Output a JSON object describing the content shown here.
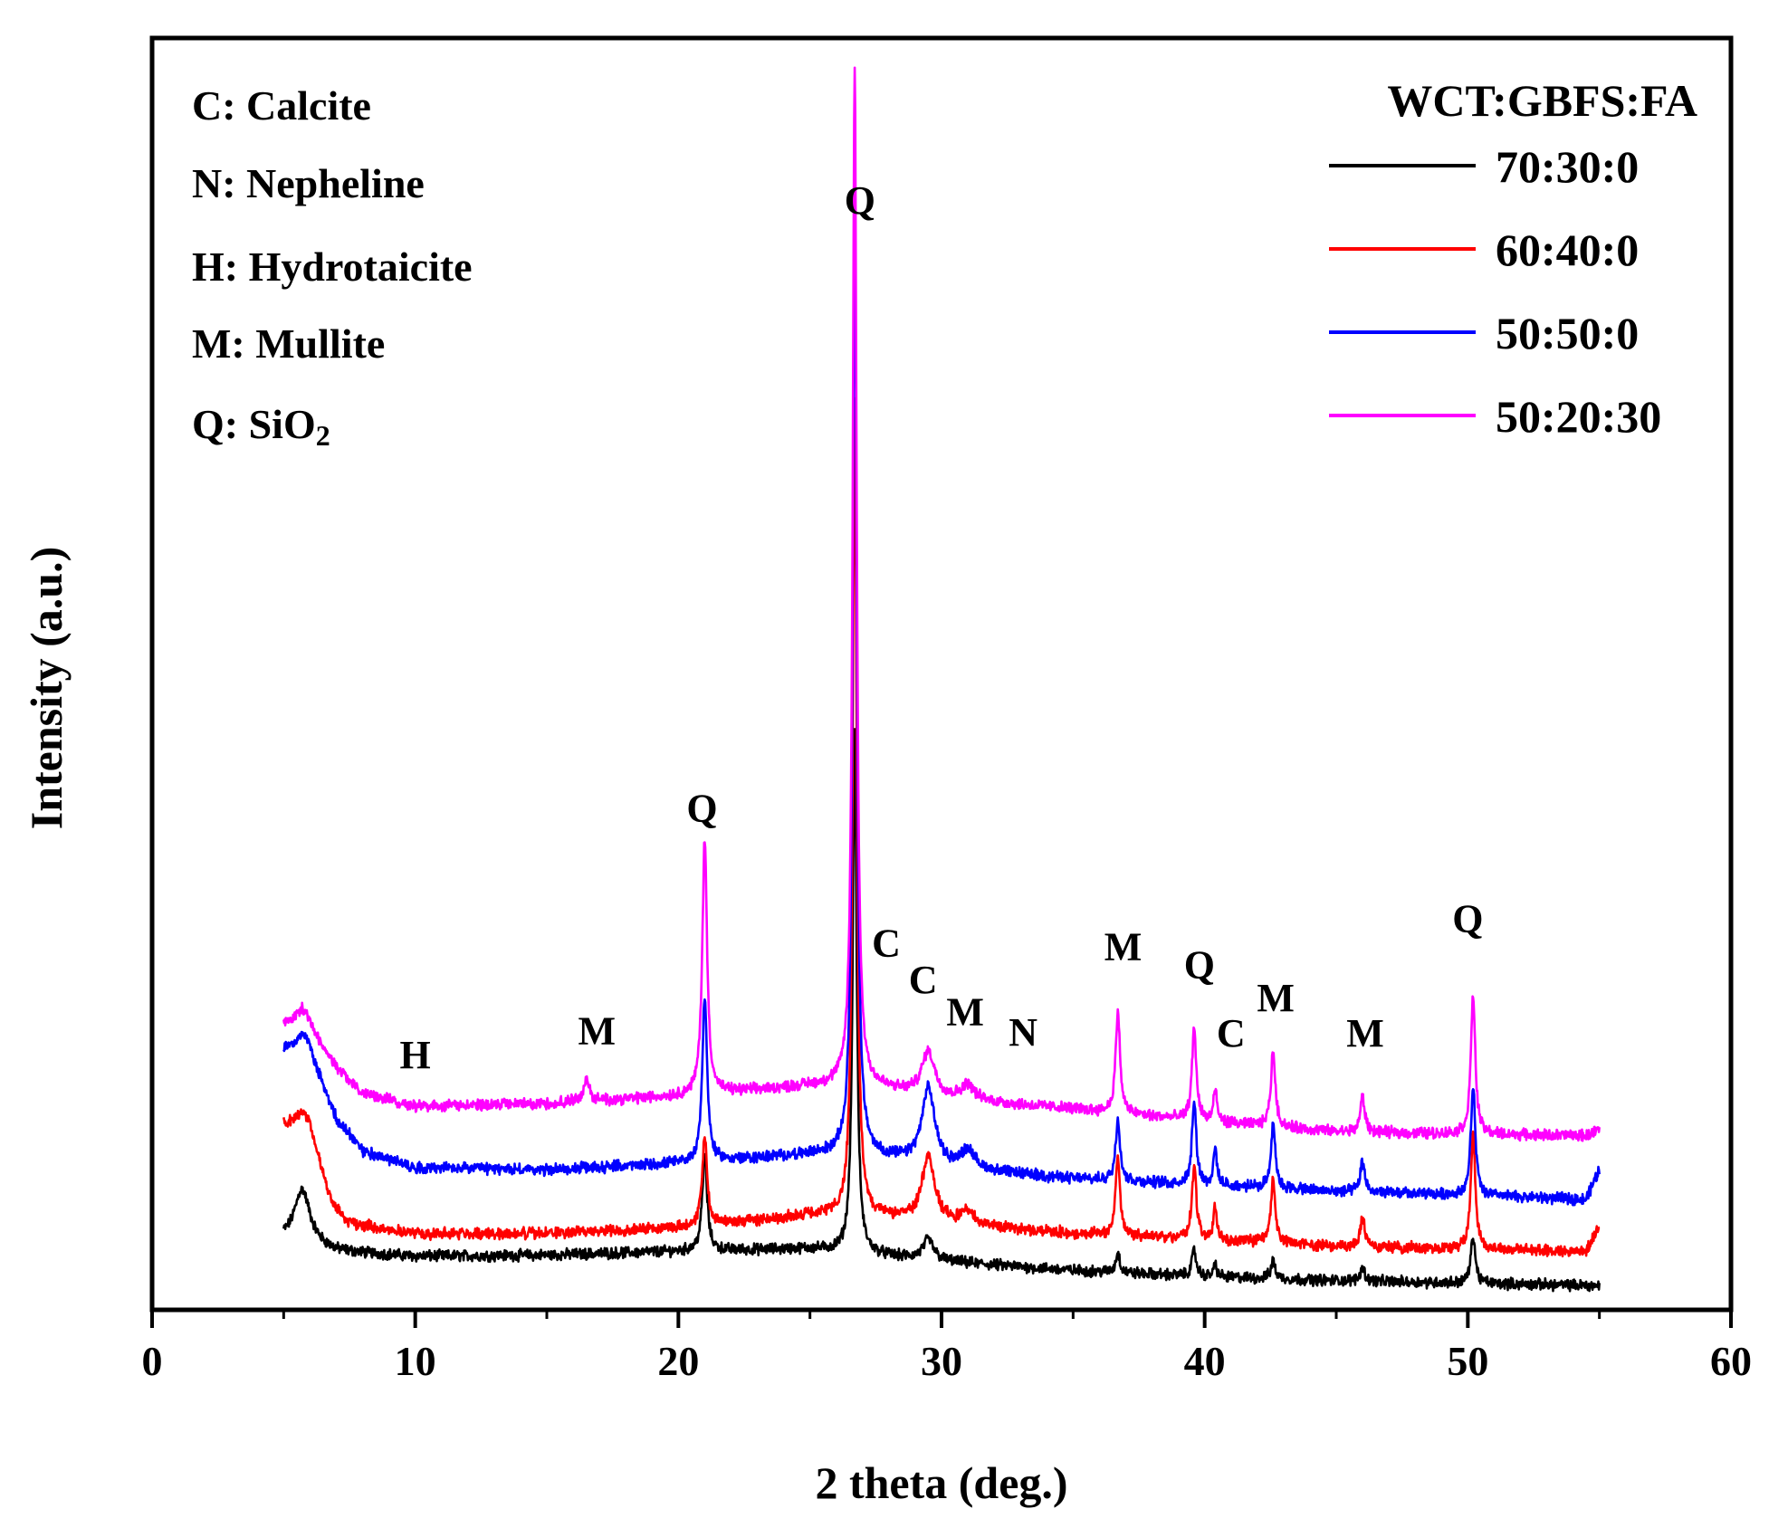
{
  "chart_data": {
    "type": "line",
    "title": "",
    "xlabel": "2 theta (deg.)",
    "ylabel": "Intensity (a.u.)",
    "xlim": [
      0,
      60
    ],
    "ylim": [
      0,
      100
    ],
    "xticks": [
      0,
      10,
      20,
      30,
      40,
      50,
      60
    ],
    "xtick_labels": [
      "0",
      "10",
      "20",
      "30",
      "40",
      "50",
      "60"
    ],
    "grid": false,
    "legend_position": "top-right",
    "legend_title": "WCT:GBFS:FA",
    "phase_key": [
      {
        "text": "C: Calcite"
      },
      {
        "text": "N: Nepheline"
      },
      {
        "text": "H: Hydrotaicite"
      },
      {
        "text": "M: Mullite"
      },
      {
        "text": "Q: SiO",
        "subscript": "2"
      }
    ],
    "series": [
      {
        "name": "70:30:0",
        "color": "#000000",
        "baseline": [
          [
            5,
            5.5
          ],
          [
            6,
            5.2
          ],
          [
            7,
            4.6
          ],
          [
            10,
            4.2
          ],
          [
            15,
            4.3
          ],
          [
            20,
            4.6
          ],
          [
            25,
            4.8
          ],
          [
            27,
            4.4
          ],
          [
            30,
            3.8
          ],
          [
            35,
            3.1
          ],
          [
            40,
            2.6
          ],
          [
            45,
            2.3
          ],
          [
            50,
            2.1
          ],
          [
            55,
            1.9
          ]
        ],
        "peaks": [
          [
            5.7,
            4.2,
            0.35
          ],
          [
            21.0,
            7.5,
            0.11
          ],
          [
            26.7,
            41.0,
            0.09
          ],
          [
            29.5,
            1.6,
            0.25
          ],
          [
            36.7,
            1.6,
            0.09
          ],
          [
            39.6,
            2.0,
            0.1
          ],
          [
            40.4,
            1.0,
            0.08
          ],
          [
            42.6,
            1.4,
            0.1
          ],
          [
            46.0,
            1.1,
            0.1
          ],
          [
            50.2,
            3.7,
            0.1
          ]
        ]
      },
      {
        "name": "60:40:0",
        "color": "#ff0000",
        "baseline": [
          [
            5,
            14.5
          ],
          [
            6,
            14.0
          ],
          [
            6.8,
            8.5
          ],
          [
            7.5,
            6.8
          ],
          [
            10,
            6.0
          ],
          [
            15,
            6.0
          ],
          [
            20,
            6.5
          ],
          [
            25,
            7.4
          ],
          [
            27,
            7.4
          ],
          [
            30,
            6.8
          ],
          [
            35,
            6.0
          ],
          [
            40,
            5.5
          ],
          [
            45,
            5.0
          ],
          [
            50,
            4.8
          ],
          [
            54.5,
            4.6
          ],
          [
            55,
            6.5
          ]
        ],
        "peaks": [
          [
            5.7,
            1.5,
            0.3
          ],
          [
            21.0,
            7.0,
            0.11
          ],
          [
            26.7,
            64.0,
            0.09
          ],
          [
            29.5,
            5.0,
            0.3
          ],
          [
            31.0,
            1.0,
            0.3
          ],
          [
            36.7,
            6.2,
            0.1
          ],
          [
            39.6,
            5.8,
            0.1
          ],
          [
            40.4,
            2.5,
            0.08
          ],
          [
            42.6,
            5.0,
            0.1
          ],
          [
            46.0,
            2.3,
            0.1
          ],
          [
            50.2,
            9.3,
            0.1
          ]
        ]
      },
      {
        "name": "50:50:0",
        "color": "#0000ff",
        "baseline": [
          [
            5,
            20.5
          ],
          [
            6,
            20.0
          ],
          [
            7,
            15.0
          ],
          [
            8,
            12.5
          ],
          [
            10,
            11.2
          ],
          [
            15,
            11.0
          ],
          [
            20,
            11.5
          ],
          [
            25,
            12.2
          ],
          [
            27,
            12.2
          ],
          [
            30,
            11.2
          ],
          [
            35,
            10.3
          ],
          [
            40,
            9.8
          ],
          [
            45,
            9.3
          ],
          [
            50,
            9.0
          ],
          [
            54.5,
            8.7
          ],
          [
            55,
            11.0
          ]
        ],
        "peaks": [
          [
            5.7,
            1.5,
            0.3
          ],
          [
            21.0,
            13.0,
            0.11
          ],
          [
            26.7,
            76.0,
            0.09
          ],
          [
            29.5,
            6.0,
            0.3
          ],
          [
            31.0,
            1.5,
            0.3
          ],
          [
            36.7,
            5.0,
            0.1
          ],
          [
            39.6,
            6.5,
            0.1
          ],
          [
            40.4,
            2.8,
            0.08
          ],
          [
            42.6,
            5.2,
            0.1
          ],
          [
            46.0,
            2.4,
            0.1
          ],
          [
            50.2,
            8.7,
            0.1
          ]
        ]
      },
      {
        "name": "50:20:30",
        "color": "#ff00ff",
        "baseline": [
          [
            5,
            22.5
          ],
          [
            6,
            22.0
          ],
          [
            7,
            19.0
          ],
          [
            8,
            17.0
          ],
          [
            10,
            16.0
          ],
          [
            15,
            16.2
          ],
          [
            20,
            16.8
          ],
          [
            25,
            17.6
          ],
          [
            27,
            17.6
          ],
          [
            30,
            16.6
          ],
          [
            35,
            15.8
          ],
          [
            40,
            14.8
          ],
          [
            45,
            14.0
          ],
          [
            50,
            13.8
          ],
          [
            54.5,
            13.7
          ],
          [
            55,
            14.2
          ]
        ],
        "peaks": [
          [
            5.7,
            1.5,
            0.3
          ],
          [
            16.5,
            1.6,
            0.15
          ],
          [
            21.0,
            20.0,
            0.11
          ],
          [
            26.7,
            80.0,
            0.09
          ],
          [
            29.5,
            3.5,
            0.3
          ],
          [
            31.0,
            1.2,
            0.3
          ],
          [
            36.7,
            8.0,
            0.1
          ],
          [
            39.6,
            7.2,
            0.1
          ],
          [
            40.4,
            2.5,
            0.08
          ],
          [
            42.6,
            6.0,
            0.1
          ],
          [
            46.0,
            2.8,
            0.1
          ],
          [
            50.2,
            11.0,
            0.1
          ]
        ]
      }
    ],
    "annotations": [
      {
        "text": "Q",
        "x": 26.9,
        "y": 86.2
      },
      {
        "text": "Q",
        "x": 20.9,
        "y": 38.4
      },
      {
        "text": "C",
        "x": 27.9,
        "y": 27.8
      },
      {
        "text": "C",
        "x": 29.3,
        "y": 24.9
      },
      {
        "text": "M",
        "x": 30.9,
        "y": 22.4
      },
      {
        "text": "N",
        "x": 33.1,
        "y": 20.8
      },
      {
        "text": "H",
        "x": 10.0,
        "y": 19.0
      },
      {
        "text": "M",
        "x": 16.9,
        "y": 20.9
      },
      {
        "text": "M",
        "x": 36.9,
        "y": 27.5
      },
      {
        "text": "Q",
        "x": 39.8,
        "y": 26.1
      },
      {
        "text": "C",
        "x": 41.0,
        "y": 20.7
      },
      {
        "text": "M",
        "x": 42.7,
        "y": 23.5
      },
      {
        "text": "M",
        "x": 46.1,
        "y": 20.7
      },
      {
        "text": "Q",
        "x": 50.0,
        "y": 29.7
      }
    ]
  }
}
